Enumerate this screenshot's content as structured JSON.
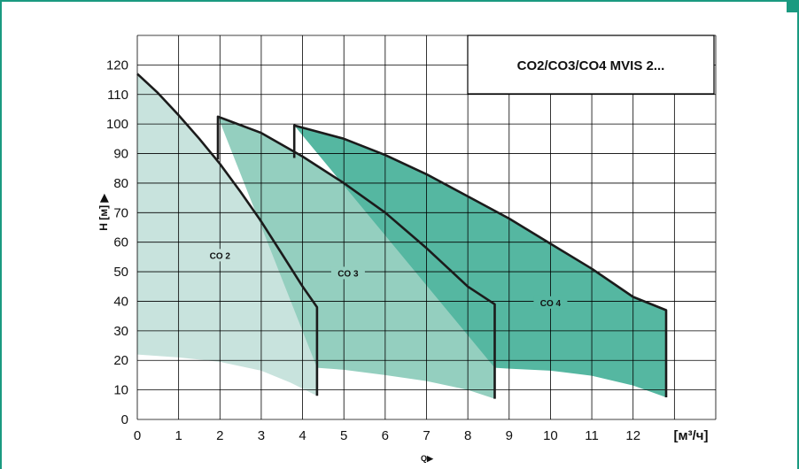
{
  "chart_data": {
    "type": "area",
    "title": "CO2/CO3/CO4 MVIS 2...",
    "xlabel": "Q▶",
    "ylabel": "H [м] ▶",
    "x_unit_label": "[м³/ч]",
    "xlim": [
      0,
      14
    ],
    "ylim": [
      0,
      130
    ],
    "x_ticks": [
      0,
      1,
      2,
      3,
      4,
      5,
      6,
      7,
      8,
      9,
      10,
      11,
      12
    ],
    "y_ticks": [
      0,
      10,
      20,
      30,
      40,
      50,
      60,
      70,
      80,
      90,
      100,
      110,
      120
    ],
    "grid": true,
    "series": [
      {
        "name": "CO 2",
        "color": "#c8e3dd",
        "upper": [
          [
            0,
            117
          ],
          [
            0.5,
            110.5
          ],
          [
            1,
            103
          ],
          [
            1.5,
            95
          ],
          [
            2,
            86.5
          ],
          [
            2.5,
            77
          ],
          [
            3,
            67
          ],
          [
            3.5,
            56
          ],
          [
            4,
            45
          ],
          [
            4.35,
            38
          ]
        ],
        "lower": [
          [
            0,
            22
          ],
          [
            1,
            21
          ],
          [
            2,
            19.5
          ],
          [
            3,
            16.5
          ],
          [
            3.7,
            12.5
          ],
          [
            4.35,
            8
          ]
        ],
        "label_at": [
          2,
          55
        ]
      },
      {
        "name": "CO 3",
        "color": "#94cfbf",
        "upper": [
          [
            1.95,
            102.5
          ],
          [
            3,
            97
          ],
          [
            4,
            89
          ],
          [
            5,
            80
          ],
          [
            6,
            70
          ],
          [
            7,
            58
          ],
          [
            8,
            45
          ],
          [
            8.65,
            39
          ]
        ],
        "lower": [
          [
            4.35,
            17.5
          ],
          [
            5,
            16.8
          ],
          [
            6,
            15
          ],
          [
            7,
            13
          ],
          [
            8,
            10
          ],
          [
            8.65,
            7
          ]
        ],
        "label_at": [
          5.1,
          49
        ]
      },
      {
        "name": "CO 4",
        "color": "#55b7a1",
        "upper": [
          [
            3.8,
            99.5
          ],
          [
            5,
            95
          ],
          [
            6,
            89.5
          ],
          [
            7,
            83
          ],
          [
            8,
            75.5
          ],
          [
            9,
            68
          ],
          [
            10,
            59.5
          ],
          [
            11,
            51
          ],
          [
            12,
            41.5
          ],
          [
            12.8,
            37
          ]
        ],
        "lower": [
          [
            8.65,
            17.5
          ],
          [
            9,
            17.2
          ],
          [
            10,
            16.5
          ],
          [
            11,
            14.8
          ],
          [
            12,
            11.5
          ],
          [
            12.8,
            7.5
          ]
        ],
        "label_at": [
          10,
          39
        ]
      }
    ],
    "boundary_curves": [
      [
        [
          0,
          117
        ],
        [
          0.5,
          110.5
        ],
        [
          1,
          103
        ],
        [
          1.5,
          95
        ],
        [
          2,
          86.5
        ],
        [
          2.5,
          77
        ],
        [
          3,
          67
        ],
        [
          3.5,
          56
        ],
        [
          4,
          45
        ],
        [
          4.35,
          38
        ],
        [
          4.35,
          8
        ]
      ],
      [
        [
          1.95,
          88
        ],
        [
          1.95,
          102.5
        ],
        [
          3,
          97
        ],
        [
          4,
          89
        ],
        [
          5,
          80
        ],
        [
          6,
          70
        ],
        [
          7,
          58
        ],
        [
          8,
          45
        ],
        [
          8.65,
          39
        ],
        [
          8.65,
          7
        ]
      ],
      [
        [
          3.8,
          88.5
        ],
        [
          3.8,
          99.5
        ],
        [
          5,
          95
        ],
        [
          6,
          89.5
        ],
        [
          7,
          83
        ],
        [
          8,
          75.5
        ],
        [
          9,
          68
        ],
        [
          10,
          59.5
        ],
        [
          11,
          51
        ],
        [
          12,
          41.5
        ],
        [
          12.8,
          37
        ],
        [
          12.8,
          7.5
        ]
      ]
    ]
  }
}
